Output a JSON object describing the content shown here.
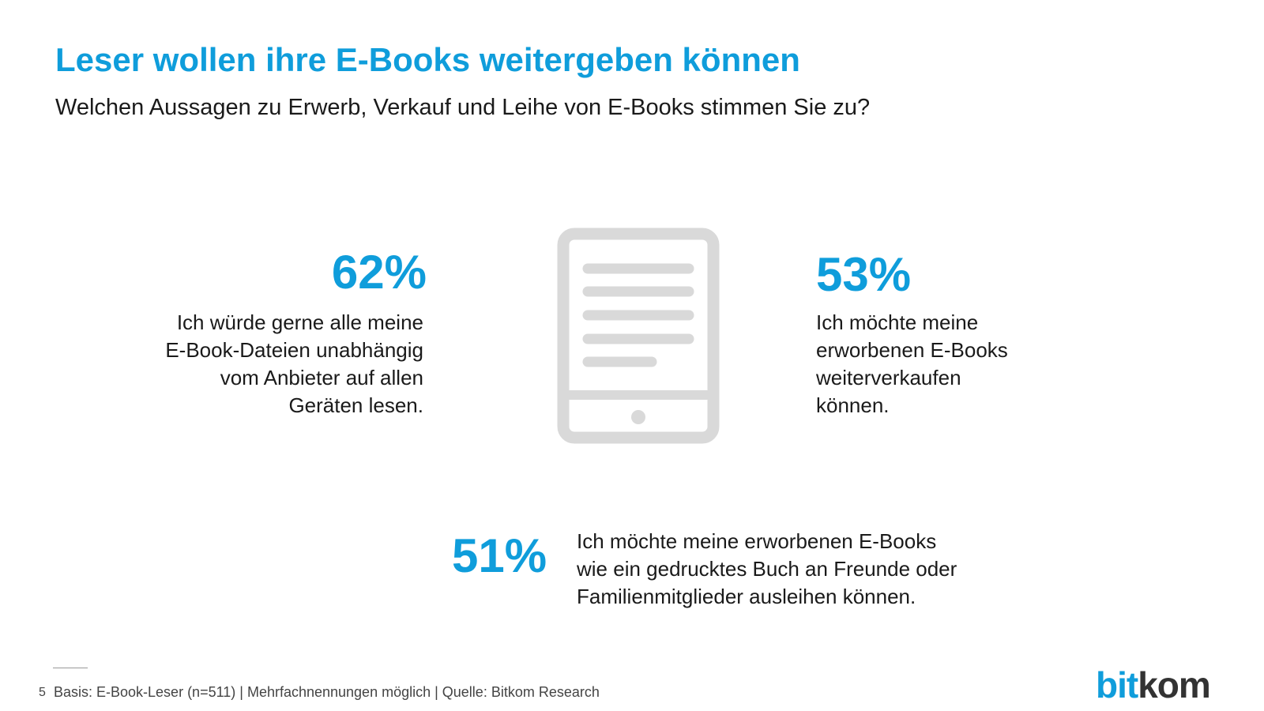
{
  "header": {
    "title": "Leser wollen ihre E-Books weitergeben können",
    "subtitle": "Welchen Aussagen zu Erwerb, Verkauf und Leihe von E-Books stimmen Sie zu?"
  },
  "stats": [
    {
      "value": "62%",
      "lines": [
        "Ich würde gerne alle meine",
        "E-Book-Dateien unabhängig",
        "vom Anbieter auf allen",
        "Geräten lesen."
      ]
    },
    {
      "value": "53%",
      "lines": [
        "Ich möchte meine",
        "erworbenen E-Books",
        "weiterverkaufen",
        "können."
      ]
    },
    {
      "value": "51%",
      "lines": [
        "Ich möchte meine erworbenen E-Books",
        "wie ein gedrucktes Buch an Freunde oder",
        "Familienmitglieder ausleihen können."
      ]
    }
  ],
  "footer": {
    "page": "5",
    "note": "Basis: E-Book-Leser (n=511) | Mehrfachnennungen möglich | Quelle: Bitkom Research"
  },
  "logo": {
    "part1": "bit",
    "part2": "kom"
  }
}
